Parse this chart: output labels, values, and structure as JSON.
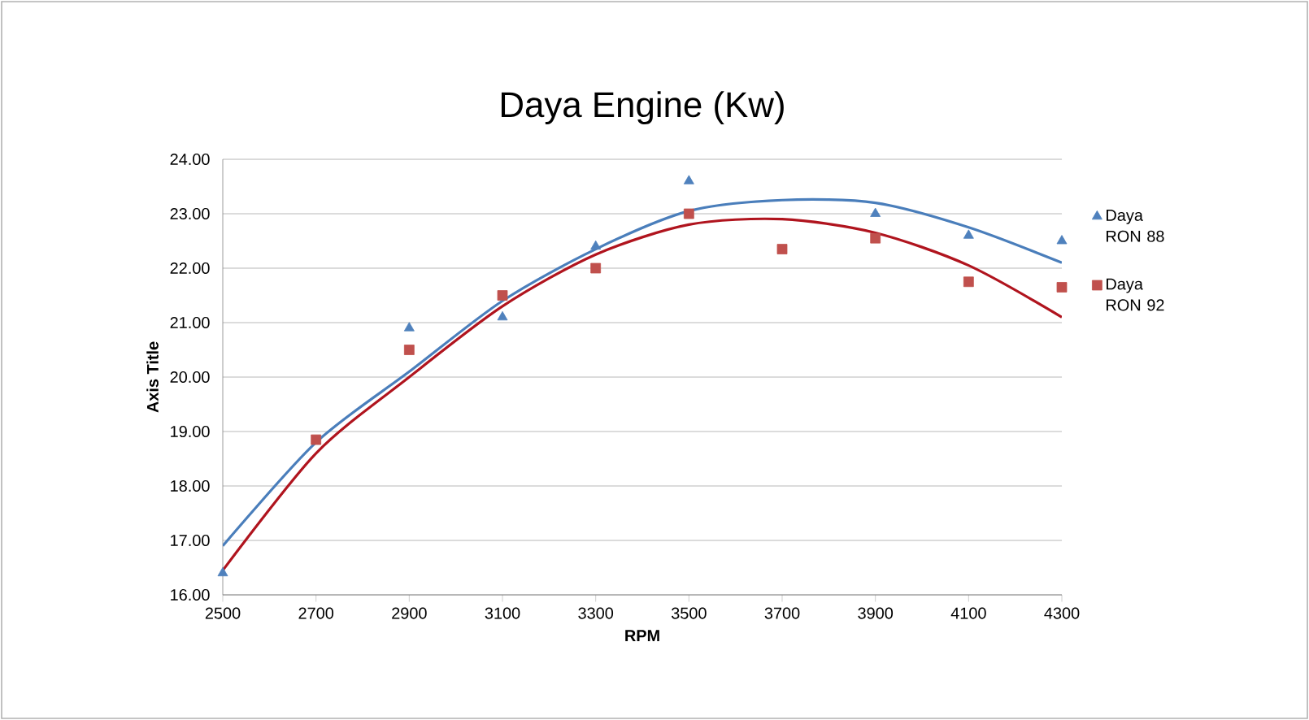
{
  "chart_data": {
    "type": "scatter",
    "title": "Daya Engine (Kw)",
    "xlabel": "RPM",
    "ylabel": "Axis Title",
    "x": [
      2500,
      2700,
      2900,
      3100,
      3300,
      3500,
      3700,
      3900,
      4100,
      4300
    ],
    "xlim": [
      2500,
      4300
    ],
    "xticks": [
      2500,
      2700,
      2900,
      3100,
      3300,
      3500,
      3700,
      3900,
      4100,
      4300
    ],
    "ylim": [
      16,
      24
    ],
    "yticks": [
      {
        "value": 16,
        "label": "16.00"
      },
      {
        "value": 17,
        "label": "17.00"
      },
      {
        "value": 18,
        "label": "18.00"
      },
      {
        "value": 19,
        "label": "19.00"
      },
      {
        "value": 20,
        "label": "20.00"
      },
      {
        "value": 21,
        "label": "21.00"
      },
      {
        "value": 22,
        "label": "22.00"
      },
      {
        "value": 23,
        "label": "23.00"
      },
      {
        "value": 24,
        "label": "24.00"
      }
    ],
    "grid": "y",
    "legend": "right",
    "series": [
      {
        "name": "Daya RON 88",
        "color": "#4f81bd",
        "marker": "triangle",
        "values": [
          16.4,
          null,
          20.9,
          21.1,
          22.4,
          23.6,
          null,
          23.0,
          22.6,
          22.5
        ]
      },
      {
        "name": "Daya RON 92",
        "color": "#c0504d",
        "marker": "square",
        "values": [
          null,
          18.85,
          20.5,
          21.5,
          22.0,
          23.0,
          22.35,
          22.55,
          21.75,
          21.65
        ]
      },
      {
        "type": "line",
        "color": "#4a7ebb",
        "marker": "none",
        "values": [
          16.9,
          18.8,
          20.1,
          21.4,
          22.35,
          23.05,
          23.25,
          23.2,
          22.75,
          22.1
        ]
      },
      {
        "type": "line",
        "color": "#b0141e",
        "marker": "none",
        "values": [
          16.45,
          18.6,
          20.0,
          21.3,
          22.25,
          22.8,
          22.9,
          22.65,
          22.05,
          21.1
        ]
      }
    ]
  }
}
